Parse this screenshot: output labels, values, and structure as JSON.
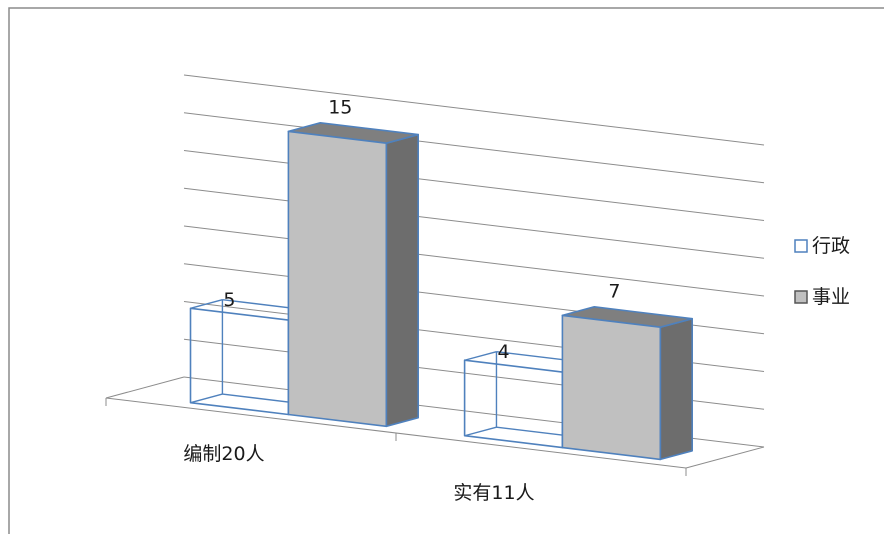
{
  "chart_data": {
    "type": "bar",
    "categories": [
      "编制20人",
      "实有11人"
    ],
    "series": [
      {
        "name": "行政",
        "values": [
          5,
          4
        ],
        "style": "outline"
      },
      {
        "name": "事业",
        "values": [
          15,
          7
        ],
        "style": "filled"
      }
    ],
    "data_labels": [
      [
        "5",
        "4"
      ],
      [
        "15",
        "7"
      ]
    ],
    "ylim": [
      0,
      16
    ],
    "grid": true,
    "legend": "right",
    "colors": {
      "edge": "#4f81bd",
      "filled_front": "#c0c0c0",
      "filled_side": "#6d6d6d",
      "filled_top": "#7f7f7f",
      "outline_front": "#ffffff",
      "grid": "#8c8c8c"
    }
  }
}
